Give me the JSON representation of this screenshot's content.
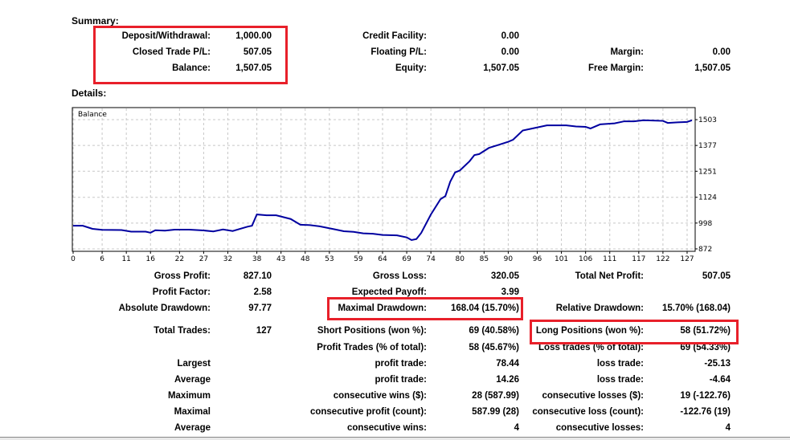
{
  "summary": {
    "heading": "Summary:",
    "rows": [
      [
        {
          "label": "Deposit/Withdrawal:",
          "value": "1,000.00"
        },
        {
          "label": "Credit Facility:",
          "value": "0.00"
        },
        null
      ],
      [
        {
          "label": "Closed Trade P/L:",
          "value": "507.05"
        },
        {
          "label": "Floating P/L:",
          "value": "0.00"
        },
        {
          "label": "Margin:",
          "value": "0.00"
        }
      ],
      [
        {
          "label": "Balance:",
          "value": "1,507.05"
        },
        {
          "label": "Equity:",
          "value": "1,507.05"
        },
        {
          "label": "Free Margin:",
          "value": "1,507.05"
        }
      ]
    ]
  },
  "details": {
    "heading": "Details:",
    "rows": [
      [
        {
          "label": "Gross Profit:",
          "value": "827.10"
        },
        {
          "label": "Gross Loss:",
          "value": "320.05"
        },
        {
          "label": "Total Net Profit:",
          "value": "507.05"
        }
      ],
      [
        {
          "label": "Profit Factor:",
          "value": "2.58"
        },
        {
          "label": "Expected Payoff:",
          "value": "3.99"
        },
        null
      ],
      [
        {
          "label": "Absolute Drawdown:",
          "value": "97.77"
        },
        {
          "label": "Maximal Drawdown:",
          "value": "168.04 (15.70%)"
        },
        {
          "label": "Relative Drawdown:",
          "value": "15.70% (168.04)"
        }
      ],
      [
        {
          "label": "Total Trades:",
          "value": "127"
        },
        {
          "label": "Short Positions (won %):",
          "value": "69 (40.58%)"
        },
        {
          "label": "Long Positions (won %):",
          "value": "58 (51.72%)"
        }
      ],
      [
        null,
        {
          "label": "Profit Trades (% of total):",
          "value": "58 (45.67%)"
        },
        {
          "label": "Loss trades (% of total):",
          "value": "69 (54.33%)"
        }
      ],
      [
        {
          "label": "Largest",
          "value": ""
        },
        {
          "label": "profit trade:",
          "value": "78.44"
        },
        {
          "label": "loss trade:",
          "value": "-25.13"
        }
      ],
      [
        {
          "label": "Average",
          "value": ""
        },
        {
          "label": "profit trade:",
          "value": "14.26"
        },
        {
          "label": "loss trade:",
          "value": "-4.64"
        }
      ],
      [
        {
          "label": "Maximum",
          "value": ""
        },
        {
          "label": "consecutive wins ($):",
          "value": "28 (587.99)"
        },
        {
          "label": "consecutive losses ($):",
          "value": "19 (-122.76)"
        }
      ],
      [
        {
          "label": "Maximal",
          "value": ""
        },
        {
          "label": "consecutive profit (count):",
          "value": "587.99 (28)"
        },
        {
          "label": "consecutive loss (count):",
          "value": "-122.76 (19)"
        }
      ],
      [
        {
          "label": "Average",
          "value": ""
        },
        {
          "label": "consecutive wins:",
          "value": "4"
        },
        {
          "label": "consecutive losses:",
          "value": "4"
        }
      ]
    ]
  },
  "colors": {
    "highlight": "#e8202a",
    "line": "#0000a0",
    "grid": "#c8c8c8"
  },
  "chart_data": {
    "type": "line",
    "title": "Balance",
    "xlabel": "",
    "ylabel": "",
    "xlim": [
      0,
      128.5
    ],
    "ylim": [
      864,
      1558
    ],
    "grid": true,
    "x_ticks": [
      0,
      6,
      11,
      16,
      22,
      27,
      32,
      38,
      43,
      48,
      53,
      59,
      64,
      69,
      74,
      80,
      85,
      90,
      96,
      101,
      106,
      111,
      117,
      122,
      127
    ],
    "y_ticks": [
      872,
      998,
      1124,
      1251,
      1377,
      1503
    ],
    "series": [
      {
        "name": "Balance",
        "x": [
          0,
          2,
          4,
          6,
          10,
          12,
          15,
          16,
          17,
          19,
          21,
          24,
          27,
          29,
          31,
          33,
          36,
          37,
          38,
          40,
          42,
          45,
          47,
          49,
          51,
          54,
          56,
          58,
          60,
          62,
          64,
          67,
          69,
          70,
          71,
          72,
          74,
          76,
          77,
          78,
          79,
          80,
          82,
          83,
          84,
          86,
          88,
          90,
          91,
          93,
          95,
          98,
          102,
          104,
          106,
          107,
          109,
          112,
          114,
          116,
          118,
          122,
          123,
          125,
          127,
          128
        ],
        "y": [
          985,
          985,
          970,
          965,
          964,
          956,
          956,
          951,
          963,
          961,
          966,
          966,
          962,
          957,
          967,
          959,
          980,
          985,
          1040,
          1036,
          1036,
          1018,
          990,
          988,
          982,
          968,
          958,
          955,
          948,
          946,
          940,
          938,
          928,
          915,
          920,
          950,
          1040,
          1115,
          1130,
          1200,
          1245,
          1255,
          1300,
          1330,
          1335,
          1365,
          1380,
          1395,
          1405,
          1450,
          1460,
          1475,
          1475,
          1470,
          1468,
          1460,
          1480,
          1485,
          1495,
          1495,
          1500,
          1497,
          1487,
          1490,
          1492,
          1500
        ]
      }
    ]
  }
}
